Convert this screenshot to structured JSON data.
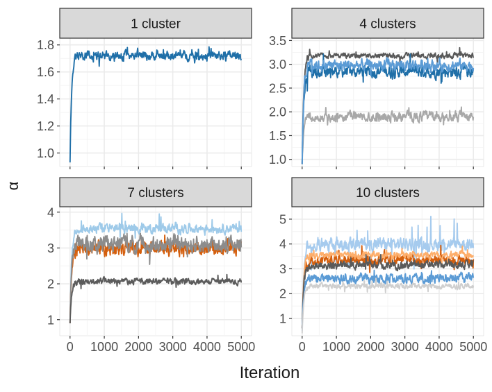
{
  "figure": {
    "xlabel": "Iteration",
    "ylabel": "α",
    "colors": {
      "panel_bg": "#ffffff",
      "grid_major": "#ebebeb",
      "grid_minor": "#f4f4f4",
      "strip_bg": "#d9d9d9",
      "strip_border": "#333333",
      "axis_text": "#4d4d4d",
      "title_text": "#1a1a1a"
    }
  },
  "chart_data": [
    {
      "type": "line",
      "title": "1 cluster",
      "xlim": [
        -300,
        5300
      ],
      "x_ticks": [
        0,
        1000,
        2000,
        3000,
        4000,
        5000
      ],
      "ylim": [
        0.9,
        1.85
      ],
      "y_ticks": [
        1.0,
        1.2,
        1.4,
        1.6,
        1.8
      ],
      "show_x_tick_labels": false,
      "grid": true,
      "series": [
        {
          "color": "#1f6fa8",
          "start": 0.93,
          "level": 1.72,
          "noise": 0.025,
          "spikes": 0.06,
          "seed": 11
        }
      ]
    },
    {
      "type": "line",
      "title": "4 clusters",
      "xlim": [
        -300,
        5300
      ],
      "x_ticks": [
        0,
        1000,
        2000,
        3000,
        4000,
        5000
      ],
      "ylim": [
        0.85,
        3.55
      ],
      "y_ticks": [
        1.0,
        1.5,
        2.0,
        2.5,
        3.0,
        3.5
      ],
      "show_x_tick_labels": false,
      "grid": true,
      "series": [
        {
          "color": "#a8a8a8",
          "start": 0.9,
          "level": 1.9,
          "noise": 0.08,
          "spikes": 0.2,
          "seed": 21
        },
        {
          "color": "#595959",
          "start": 0.9,
          "level": 3.18,
          "noise": 0.04,
          "spikes": 0.12,
          "seed": 22
        },
        {
          "color": "#1f6fa8",
          "start": 0.9,
          "level": 2.85,
          "noise": 0.1,
          "spikes": 0.25,
          "seed": 23
        },
        {
          "color": "#5b9bd5",
          "start": 0.9,
          "level": 2.98,
          "noise": 0.09,
          "spikes": 0.2,
          "seed": 24
        }
      ]
    },
    {
      "type": "line",
      "title": "7 clusters",
      "xlim": [
        -300,
        5300
      ],
      "x_ticks": [
        0,
        1000,
        2000,
        3000,
        4000,
        5000
      ],
      "x_tick_labels": [
        "0",
        "1000",
        "2000",
        "3000",
        "4000",
        "5000"
      ],
      "ylim": [
        0.55,
        4.15
      ],
      "y_ticks": [
        1,
        2,
        3,
        4
      ],
      "show_x_tick_labels": true,
      "grid": true,
      "series": [
        {
          "color": "#9ecae9",
          "start": 0.9,
          "level": 3.55,
          "noise": 0.1,
          "spikes": 0.35,
          "seed": 31
        },
        {
          "color": "#d45f0e",
          "start": 0.9,
          "level": 3.0,
          "noise": 0.15,
          "spikes": 0.3,
          "seed": 32
        },
        {
          "color": "#8c8c8c",
          "start": 0.9,
          "level": 3.1,
          "noise": 0.18,
          "spikes": 0.4,
          "seed": 33
        },
        {
          "color": "#5b5b5b",
          "start": 0.9,
          "level": 2.07,
          "noise": 0.07,
          "spikes": 0.2,
          "seed": 34
        }
      ]
    },
    {
      "type": "line",
      "title": "10 clusters",
      "xlim": [
        -300,
        5300
      ],
      "x_ticks": [
        0,
        1000,
        2000,
        3000,
        4000,
        5000
      ],
      "x_tick_labels": [
        "0",
        "1000",
        "2000",
        "3000",
        "4000",
        "5000"
      ],
      "ylim": [
        0.3,
        5.5
      ],
      "y_ticks": [
        1,
        2,
        3,
        4,
        5
      ],
      "show_x_tick_labels": true,
      "grid": true,
      "series": [
        {
          "color": "#a6cbee",
          "start": 0.5,
          "level": 4.0,
          "noise": 0.2,
          "spikes": 0.9,
          "seed": 41
        },
        {
          "color": "#d45f0e",
          "start": 0.6,
          "level": 3.35,
          "noise": 0.15,
          "spikes": 0.5,
          "seed": 42
        },
        {
          "color": "#fdae6b",
          "start": 0.6,
          "level": 3.55,
          "noise": 0.1,
          "spikes": 0.3,
          "seed": 43
        },
        {
          "color": "#5a5a5a",
          "start": 0.6,
          "level": 3.15,
          "noise": 0.12,
          "spikes": 0.3,
          "seed": 44
        },
        {
          "color": "#5b9bd5",
          "start": 0.6,
          "level": 2.6,
          "noise": 0.15,
          "spikes": 0.4,
          "seed": 45
        },
        {
          "color": "#cfcfcf",
          "start": 0.4,
          "level": 2.3,
          "noise": 0.08,
          "spikes": 0.25,
          "seed": 46
        }
      ]
    }
  ]
}
